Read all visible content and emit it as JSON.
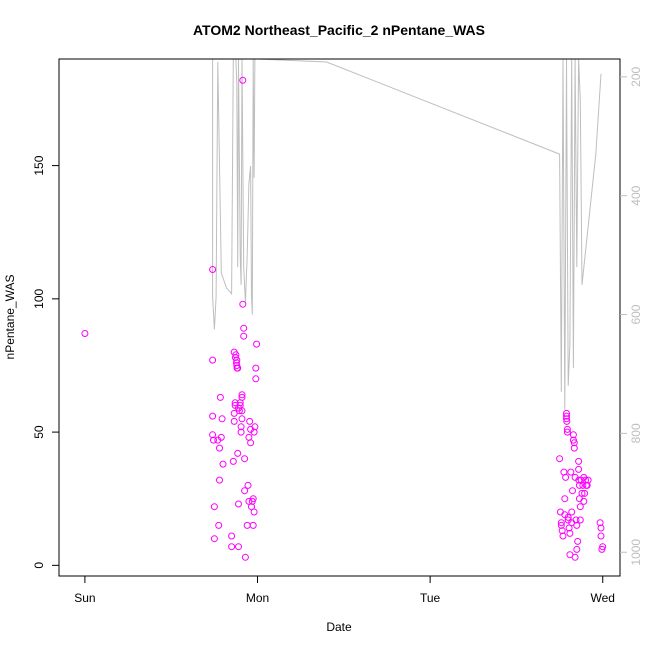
{
  "chart_data": {
    "type": "scatter",
    "title": "ATOM2 Northeast_Pacific_2 nPentane_WAS",
    "xlabel": "Date",
    "ylabel": "nPentane_WAS",
    "x_unit": "days since Sun 00:00",
    "xlim": [
      -0.15,
      3.1
    ],
    "ylim": [
      -4,
      190
    ],
    "x_ticks": [
      {
        "value": 0,
        "label": "Sun"
      },
      {
        "value": 1,
        "label": "Mon"
      },
      {
        "value": 2,
        "label": "Tue"
      },
      {
        "value": 3,
        "label": "Wed"
      }
    ],
    "y_ticks": [
      0,
      50,
      100,
      150
    ],
    "y2_ticks": [
      200,
      400,
      600,
      800,
      1000
    ],
    "y2_inverted": true,
    "y2_range": [
      1040,
      170
    ],
    "grid": false,
    "series": [
      {
        "kind": "points",
        "color": "#ff00ff",
        "points": [
          [
            0.0,
            87
          ],
          [
            0.74,
            111
          ],
          [
            0.74,
            77
          ],
          [
            0.74,
            56
          ],
          [
            0.74,
            49
          ],
          [
            0.745,
            47
          ],
          [
            0.75,
            22
          ],
          [
            0.75,
            10
          ],
          [
            0.77,
            47
          ],
          [
            0.775,
            15
          ],
          [
            0.78,
            32
          ],
          [
            0.78,
            44
          ],
          [
            0.785,
            63
          ],
          [
            0.79,
            48
          ],
          [
            0.795,
            55
          ],
          [
            0.8,
            38
          ],
          [
            0.85,
            11
          ],
          [
            0.85,
            7
          ],
          [
            0.86,
            39
          ],
          [
            0.865,
            80
          ],
          [
            0.865,
            54
          ],
          [
            0.865,
            57
          ],
          [
            0.87,
            60
          ],
          [
            0.87,
            61
          ],
          [
            0.872,
            78
          ],
          [
            0.875,
            79
          ],
          [
            0.878,
            76
          ],
          [
            0.88,
            77
          ],
          [
            0.88,
            75
          ],
          [
            0.882,
            74
          ],
          [
            0.885,
            74
          ],
          [
            0.885,
            42
          ],
          [
            0.89,
            59
          ],
          [
            0.89,
            23
          ],
          [
            0.89,
            7
          ],
          [
            0.895,
            58
          ],
          [
            0.9,
            61
          ],
          [
            0.9,
            60
          ],
          [
            0.905,
            50
          ],
          [
            0.905,
            52
          ],
          [
            0.91,
            63
          ],
          [
            0.91,
            64
          ],
          [
            0.91,
            58
          ],
          [
            0.91,
            55
          ],
          [
            0.915,
            182
          ],
          [
            0.915,
            98
          ],
          [
            0.92,
            89
          ],
          [
            0.92,
            86
          ],
          [
            0.925,
            40
          ],
          [
            0.925,
            28
          ],
          [
            0.93,
            3
          ],
          [
            0.94,
            15
          ],
          [
            0.945,
            30
          ],
          [
            0.95,
            48
          ],
          [
            0.95,
            24
          ],
          [
            0.955,
            54
          ],
          [
            0.96,
            51
          ],
          [
            0.96,
            46
          ],
          [
            0.965,
            22
          ],
          [
            0.97,
            24
          ],
          [
            0.975,
            15
          ],
          [
            0.975,
            25
          ],
          [
            0.98,
            20
          ],
          [
            0.98,
            50
          ],
          [
            0.985,
            52
          ],
          [
            0.99,
            70
          ],
          [
            0.99,
            74
          ],
          [
            0.995,
            83
          ],
          [
            2.75,
            40
          ],
          [
            2.755,
            20
          ],
          [
            2.76,
            16
          ],
          [
            2.76,
            15
          ],
          [
            2.765,
            13
          ],
          [
            2.77,
            11
          ],
          [
            2.775,
            35
          ],
          [
            2.78,
            19
          ],
          [
            2.78,
            25
          ],
          [
            2.785,
            33
          ],
          [
            2.79,
            56
          ],
          [
            2.79,
            57
          ],
          [
            2.79,
            55
          ],
          [
            2.792,
            54
          ],
          [
            2.795,
            50
          ],
          [
            2.795,
            51
          ],
          [
            2.8,
            18
          ],
          [
            2.8,
            17
          ],
          [
            2.805,
            14
          ],
          [
            2.81,
            12
          ],
          [
            2.81,
            4
          ],
          [
            2.815,
            35
          ],
          [
            2.82,
            20
          ],
          [
            2.82,
            16
          ],
          [
            2.825,
            28
          ],
          [
            2.83,
            49
          ],
          [
            2.83,
            47
          ],
          [
            2.835,
            46
          ],
          [
            2.835,
            44
          ],
          [
            2.84,
            33
          ],
          [
            2.84,
            3
          ],
          [
            2.845,
            17
          ],
          [
            2.85,
            15
          ],
          [
            2.85,
            6
          ],
          [
            2.855,
            9
          ],
          [
            2.86,
            39
          ],
          [
            2.86,
            36
          ],
          [
            2.862,
            32
          ],
          [
            2.865,
            30
          ],
          [
            2.865,
            25
          ],
          [
            2.87,
            22
          ],
          [
            2.87,
            17
          ],
          [
            2.875,
            32
          ],
          [
            2.88,
            27
          ],
          [
            2.885,
            30
          ],
          [
            2.89,
            33
          ],
          [
            2.89,
            24
          ],
          [
            2.895,
            27
          ],
          [
            2.9,
            32
          ],
          [
            2.905,
            30
          ],
          [
            2.91,
            30
          ],
          [
            2.915,
            32
          ],
          [
            2.985,
            16
          ],
          [
            2.99,
            14
          ],
          [
            2.99,
            11
          ],
          [
            2.995,
            6
          ],
          [
            3.0,
            7
          ]
        ]
      },
      {
        "kind": "line",
        "color": "#bebebe",
        "axis": "right",
        "points": [
          [
            0.74,
            170
          ],
          [
            0.74,
            570
          ],
          [
            0.75,
            625
          ],
          [
            0.755,
            600
          ],
          [
            0.76,
            570
          ],
          [
            0.77,
            175
          ],
          [
            0.79,
            530
          ],
          [
            0.82,
            555
          ],
          [
            0.85,
            565
          ],
          [
            0.86,
            170
          ],
          [
            0.875,
            170
          ],
          [
            0.88,
            210
          ],
          [
            0.885,
            520
          ],
          [
            0.89,
            170
          ],
          [
            0.9,
            500
          ],
          [
            0.905,
            550
          ],
          [
            0.91,
            170
          ],
          [
            0.92,
            520
          ],
          [
            0.93,
            580
          ],
          [
            0.94,
            500
          ],
          [
            0.95,
            380
          ],
          [
            0.96,
            350
          ],
          [
            0.965,
            570
          ],
          [
            0.97,
            600
          ],
          [
            0.975,
            170
          ],
          [
            0.98,
            370
          ],
          [
            0.985,
            170
          ],
          [
            1.0,
            170
          ],
          [
            1.4,
            175
          ],
          [
            2.75,
            330
          ],
          [
            2.76,
            730
          ],
          [
            2.77,
            170
          ],
          [
            2.78,
            760
          ],
          [
            2.79,
            170
          ],
          [
            2.8,
            720
          ],
          [
            2.81,
            650
          ],
          [
            2.82,
            170
          ],
          [
            2.83,
            690
          ],
          [
            2.84,
            170
          ],
          [
            2.85,
            520
          ],
          [
            2.86,
            170
          ],
          [
            2.87,
            240
          ],
          [
            2.88,
            550
          ],
          [
            2.96,
            330
          ],
          [
            2.99,
            195
          ]
        ]
      }
    ]
  }
}
